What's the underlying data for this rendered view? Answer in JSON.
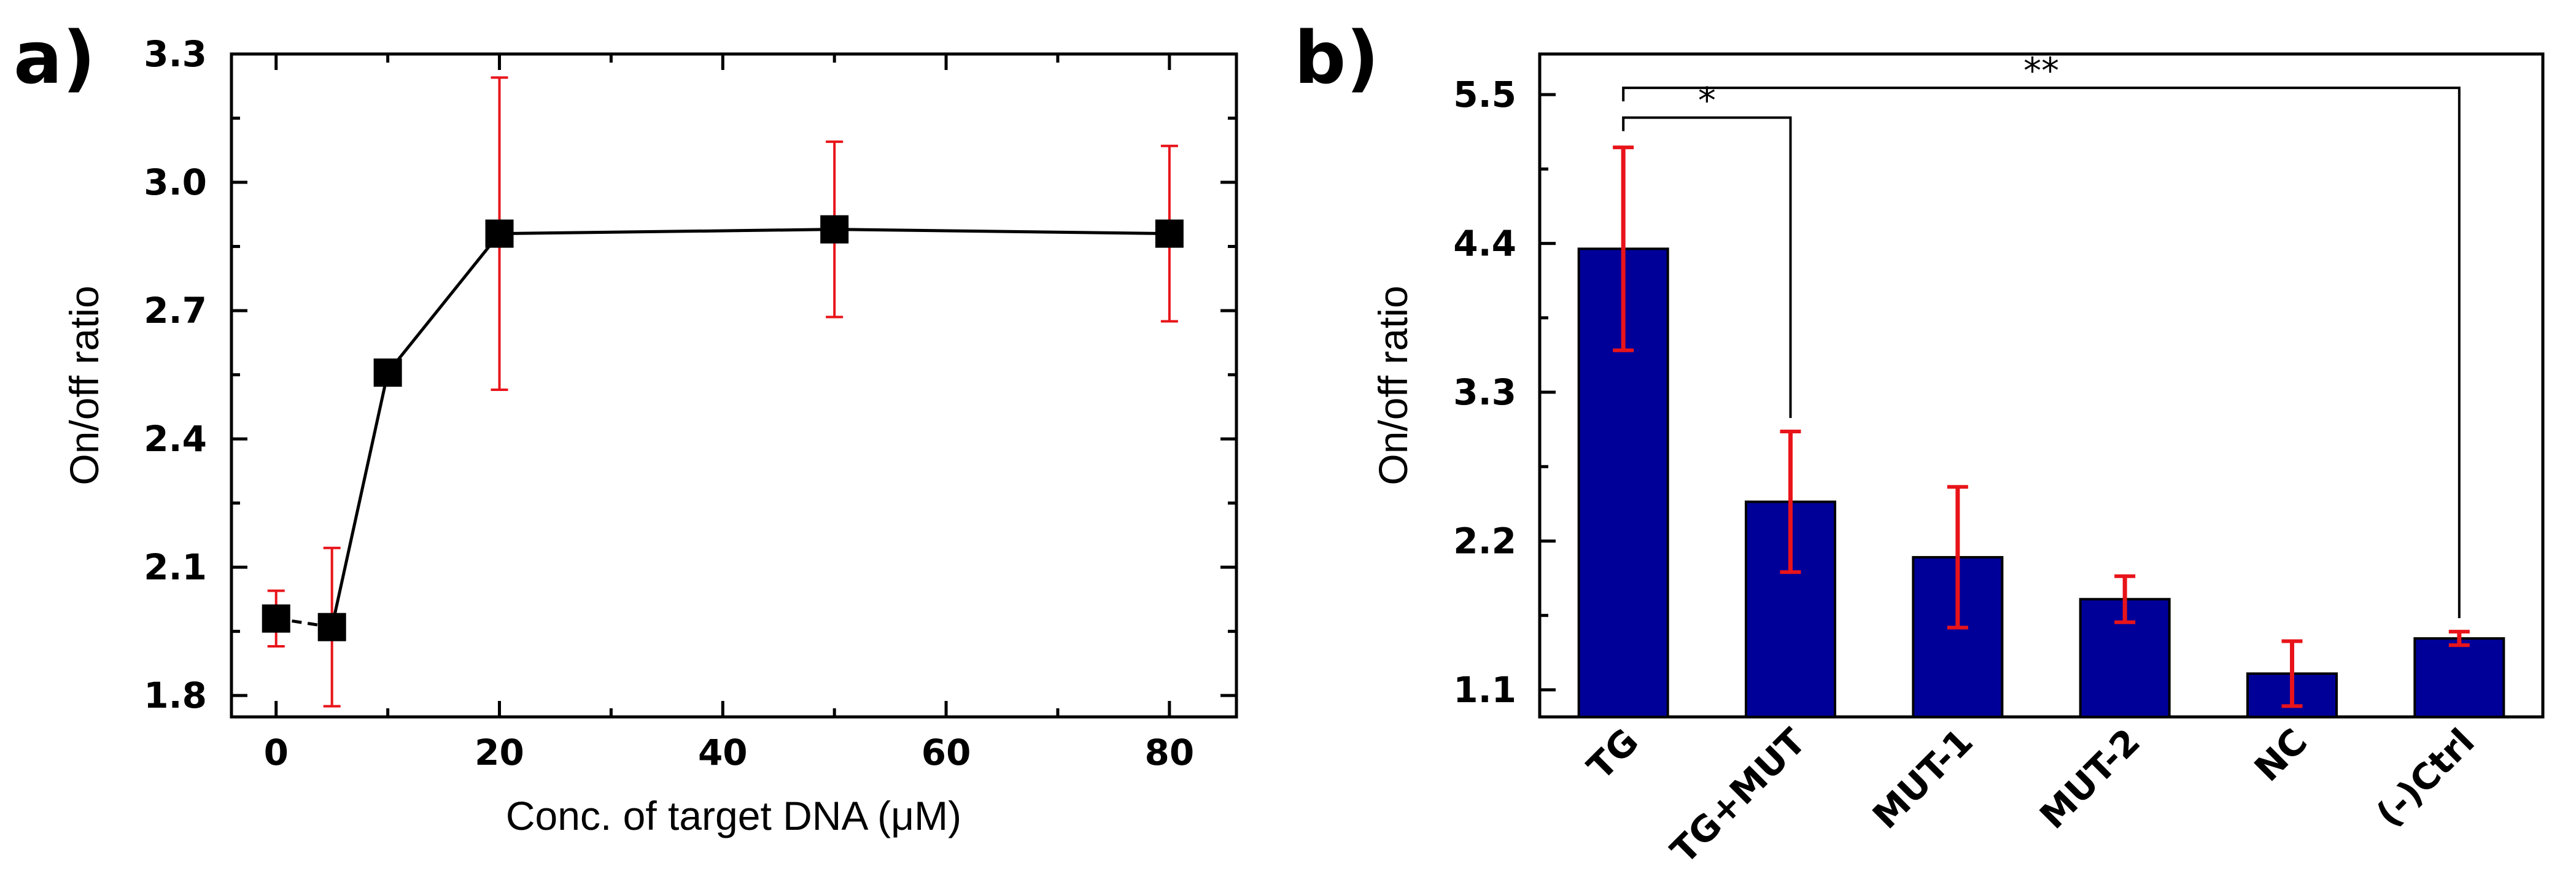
{
  "figure_labels": {
    "a": "a)",
    "b": "b)"
  },
  "colors": {
    "axis": "#000000",
    "error": "#e8141a",
    "bar": "#000099",
    "marker": "#000000"
  },
  "chart_data": [
    {
      "type": "line",
      "panel": "a)",
      "xlabel": "Conc. of target DNA (μM)",
      "ylabel": "On/off ratio",
      "xlim": [
        -4,
        86
      ],
      "ylim": [
        1.75,
        3.3
      ],
      "xticks": [
        0,
        20,
        40,
        60,
        80
      ],
      "yticks": [
        1.8,
        2.1,
        2.4,
        2.7,
        3.0,
        3.3
      ],
      "ytick_labels": [
        "1.8",
        "2.1",
        "2.4",
        "2.7",
        "3.0",
        "3.3"
      ],
      "series": [
        {
          "name": "On/off ratio",
          "x": [
            0,
            5,
            10,
            20,
            50,
            80
          ],
          "y": [
            1.98,
            1.96,
            2.555,
            2.88,
            2.89,
            2.88
          ],
          "err_low": [
            0.065,
            0.185,
            0.02,
            0.365,
            0.205,
            0.205
          ],
          "err_high": [
            0.065,
            0.185,
            0.02,
            0.365,
            0.205,
            0.205
          ]
        }
      ]
    },
    {
      "type": "bar",
      "panel": "b)",
      "xlabel": "",
      "ylabel": "On/off ratio",
      "ylim": [
        0.9,
        5.8
      ],
      "yticks": [
        1.1,
        2.2,
        3.3,
        4.4,
        5.5
      ],
      "ytick_labels": [
        "1.1",
        "2.2",
        "3.3",
        "4.4",
        "5.5"
      ],
      "categories": [
        "TG",
        "TG+MUT",
        "MUT-1",
        "MUT-2",
        "NC",
        "(-)Ctrl"
      ],
      "values": [
        4.36,
        2.49,
        2.08,
        1.77,
        1.22,
        1.48
      ],
      "errors": [
        0.75,
        0.52,
        0.52,
        0.17,
        0.24,
        0.05
      ],
      "annotations": [
        {
          "from": "TG",
          "to": "TG+MUT",
          "label": "*",
          "y_value": 5.33
        },
        {
          "from": "TG",
          "to": "(-)Ctrl",
          "label": "**",
          "y_value": 5.55
        }
      ]
    }
  ]
}
